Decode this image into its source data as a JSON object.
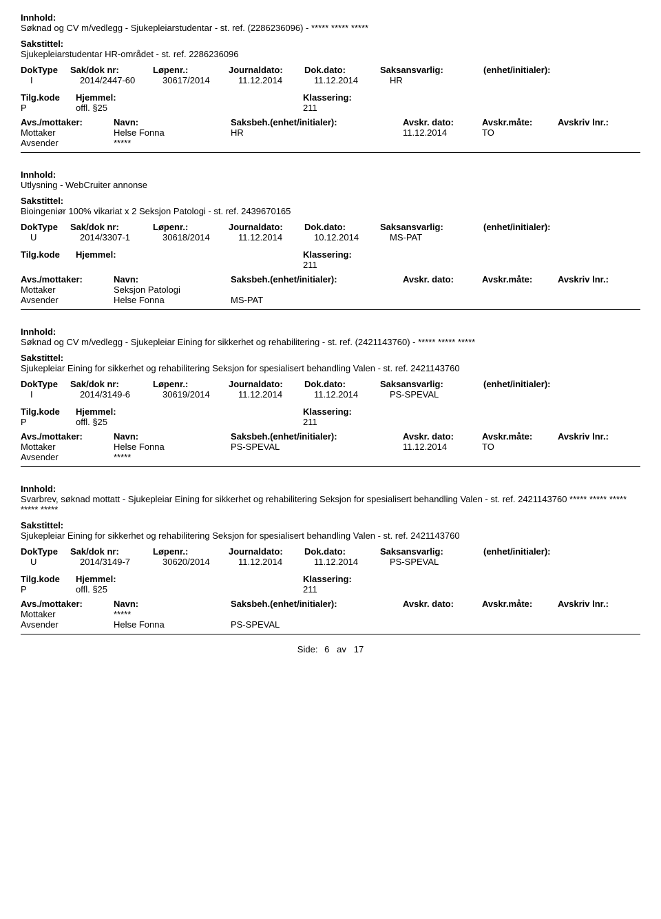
{
  "labels": {
    "innhold": "Innhold:",
    "sakstittel": "Sakstittel:",
    "doktype": "DokType",
    "sakdok": "Sak/dok nr:",
    "lopenr": "Løpenr.:",
    "journaldato": "Journaldato:",
    "dokdato": "Dok.dato:",
    "saksansvarlig": "Saksansvarlig:",
    "enhet": "(enhet/initialer):",
    "tilgkode": "Tilg.kode",
    "hjemmel": "Hjemmel:",
    "klassering": "Klassering:",
    "avsmottaker": "Avs./mottaker:",
    "navn": "Navn:",
    "saksbeh": "Saksbeh.(enhet/initialer):",
    "avskrdato": "Avskr. dato:",
    "avskrmate": "Avskr.måte:",
    "avskrlnr": "Avskriv lnr.:",
    "mottaker": "Mottaker",
    "avsender": "Avsender"
  },
  "footer": {
    "label": "Side:",
    "page": "6",
    "sep": "av",
    "total": "17"
  },
  "records": [
    {
      "innhold": "Søknad og CV m/vedlegg - Sjukepleiarstudentar - st. ref. (2286236096) - ***** ***** *****",
      "sakstittel": "Sjukepleiarstudentar HR-området - st. ref. 2286236096",
      "doktype": "I",
      "sakdok": "2014/2447-60",
      "lopenr": "30617/2014",
      "journaldato": "11.12.2014",
      "dokdato": "11.12.2014",
      "saksansvarlig": "HR",
      "enhet_init": "",
      "tilgkode": "P",
      "hjemmel": "offl. §25",
      "klassering": "211",
      "parties": [
        {
          "role": "Mottaker",
          "name": "Helse Fonna",
          "beh": "HR",
          "dato": "11.12.2014",
          "mate": "TO",
          "lnr": ""
        },
        {
          "role": "Avsender",
          "name": "*****",
          "beh": "",
          "dato": "",
          "mate": "",
          "lnr": ""
        }
      ]
    },
    {
      "innhold": "Utlysning - WebCruiter annonse",
      "sakstittel": "Bioingeniør 100% vikariat x 2 Seksjon Patologi - st. ref. 2439670165",
      "doktype": "U",
      "sakdok": "2014/3307-1",
      "lopenr": "30618/2014",
      "journaldato": "11.12.2014",
      "dokdato": "10.12.2014",
      "saksansvarlig": "MS-PAT",
      "enhet_init": "",
      "tilgkode": "",
      "hjemmel": "",
      "klassering": "211",
      "parties": [
        {
          "role": "Mottaker",
          "name": "Seksjon Patologi",
          "beh": "",
          "dato": "",
          "mate": "",
          "lnr": ""
        },
        {
          "role": "Avsender",
          "name": "Helse Fonna",
          "beh": "MS-PAT",
          "dato": "",
          "mate": "",
          "lnr": ""
        }
      ]
    },
    {
      "innhold": "Søknad og CV m/vedlegg - Sjukepleiar Eining for sikkerhet og rehabilitering - st. ref. (2421143760) - ***** ***** *****",
      "sakstittel": "Sjukepleiar Eining for sikkerhet og rehabilitering Seksjon for spesialisert behandling Valen - st. ref. 2421143760",
      "doktype": "I",
      "sakdok": "2014/3149-6",
      "lopenr": "30619/2014",
      "journaldato": "11.12.2014",
      "dokdato": "11.12.2014",
      "saksansvarlig": "PS-SPEVAL",
      "enhet_init": "",
      "tilgkode": "P",
      "hjemmel": "offl. §25",
      "klassering": "211",
      "parties": [
        {
          "role": "Mottaker",
          "name": "Helse Fonna",
          "beh": "PS-SPEVAL",
          "dato": "11.12.2014",
          "mate": "TO",
          "lnr": ""
        },
        {
          "role": "Avsender",
          "name": "*****",
          "beh": "",
          "dato": "",
          "mate": "",
          "lnr": ""
        }
      ]
    },
    {
      "innhold": "Svarbrev, søknad mottatt - Sjukepleiar Eining for sikkerhet og rehabilitering Seksjon for spesialisert behandling Valen - st. ref. 2421143760 ***** ***** ***** ***** *****",
      "sakstittel": "Sjukepleiar Eining for sikkerhet og rehabilitering Seksjon for spesialisert behandling Valen - st. ref. 2421143760",
      "doktype": "U",
      "sakdok": "2014/3149-7",
      "lopenr": "30620/2014",
      "journaldato": "11.12.2014",
      "dokdato": "11.12.2014",
      "saksansvarlig": "PS-SPEVAL",
      "enhet_init": "",
      "tilgkode": "P",
      "hjemmel": "offl. §25",
      "klassering": "211",
      "parties": [
        {
          "role": "Mottaker",
          "name": "*****",
          "beh": "",
          "dato": "",
          "mate": "",
          "lnr": ""
        },
        {
          "role": "Avsender",
          "name": "Helse Fonna",
          "beh": "PS-SPEVAL",
          "dato": "",
          "mate": "",
          "lnr": ""
        }
      ]
    }
  ]
}
